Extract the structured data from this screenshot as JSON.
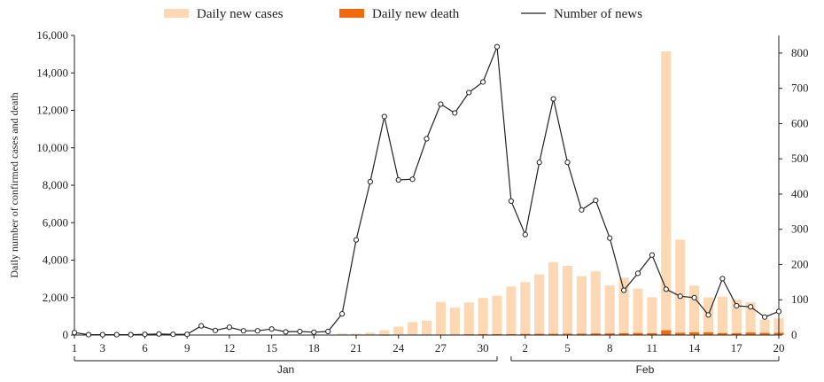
{
  "chart_data": {
    "type": "bar+line",
    "title": "",
    "legend": {
      "placement": "top",
      "entries": [
        {
          "label": "Daily new cases",
          "color": "#fcd9b4",
          "kind": "bar"
        },
        {
          "label": "Daily new death",
          "color": "#f26a10",
          "kind": "bar"
        },
        {
          "label": "Number of news",
          "color": "#222222",
          "kind": "line-marker"
        }
      ]
    },
    "ylabel": "Daily number of confirmed cases and death",
    "ylim": [
      0,
      16000
    ],
    "y_ticks": [
      0,
      2000,
      4000,
      6000,
      8000,
      10000,
      12000,
      14000,
      16000
    ],
    "y_tick_labels": [
      "0",
      "2,000",
      "4,000",
      "6,000",
      "8,000",
      "10,000",
      "12,000",
      "14,000",
      "16,000"
    ],
    "y2lim": [
      0,
      850
    ],
    "y2_ticks": [
      0,
      100,
      200,
      300,
      400,
      500,
      600,
      700,
      800
    ],
    "y2_tick_labels": [
      "0",
      "100",
      "200",
      "300",
      "400",
      "500",
      "600",
      "700",
      "800"
    ],
    "categories": [
      "Jan 1",
      "Jan 2",
      "Jan 3",
      "Jan 4",
      "Jan 5",
      "Jan 6",
      "Jan 7",
      "Jan 8",
      "Jan 9",
      "Jan 10",
      "Jan 11",
      "Jan 12",
      "Jan 13",
      "Jan 14",
      "Jan 15",
      "Jan 16",
      "Jan 17",
      "Jan 18",
      "Jan 19",
      "Jan 20",
      "Jan 21",
      "Jan 22",
      "Jan 23",
      "Jan 24",
      "Jan 25",
      "Jan 26",
      "Jan 27",
      "Jan 28",
      "Jan 29",
      "Jan 30",
      "Jan 31",
      "Feb 1",
      "Feb 2",
      "Feb 3",
      "Feb 4",
      "Feb 5",
      "Feb 6",
      "Feb 7",
      "Feb 8",
      "Feb 9",
      "Feb 10",
      "Feb 11",
      "Feb 12",
      "Feb 13",
      "Feb 14",
      "Feb 15",
      "Feb 16",
      "Feb 17",
      "Feb 18",
      "Feb 19",
      "Feb 20"
    ],
    "x_tick_labels": [
      {
        "index": 0,
        "label": "1"
      },
      {
        "index": 2,
        "label": "3"
      },
      {
        "index": 5,
        "label": "6"
      },
      {
        "index": 8,
        "label": "9"
      },
      {
        "index": 11,
        "label": "12"
      },
      {
        "index": 14,
        "label": "15"
      },
      {
        "index": 17,
        "label": "18"
      },
      {
        "index": 20,
        "label": "21"
      },
      {
        "index": 23,
        "label": "24"
      },
      {
        "index": 26,
        "label": "27"
      },
      {
        "index": 29,
        "label": "30"
      },
      {
        "index": 32,
        "label": "2"
      },
      {
        "index": 35,
        "label": "5"
      },
      {
        "index": 38,
        "label": "8"
      },
      {
        "index": 41,
        "label": "11"
      },
      {
        "index": 44,
        "label": "14"
      },
      {
        "index": 47,
        "label": "17"
      },
      {
        "index": 50,
        "label": "20"
      }
    ],
    "month_groups": [
      {
        "label": "Jan",
        "start_index": 0,
        "end_index": 30
      },
      {
        "label": "Feb",
        "start_index": 31,
        "end_index": 50
      }
    ],
    "series": [
      {
        "name": "Daily new cases",
        "axis": "left",
        "kind": "bar",
        "color": "#fcd9b4",
        "values": [
          0,
          0,
          0,
          0,
          0,
          0,
          0,
          0,
          0,
          0,
          0,
          0,
          0,
          0,
          0,
          0,
          0,
          0,
          0,
          80,
          80,
          130,
          260,
          450,
          690,
          770,
          1770,
          1460,
          1740,
          1980,
          2100,
          2590,
          2830,
          3240,
          3890,
          3690,
          3150,
          3400,
          2650,
          3060,
          2480,
          2020,
          15150,
          5090,
          2640,
          2010,
          2050,
          1890,
          1750,
          820,
          890
        ]
      },
      {
        "name": "Daily new death",
        "axis": "left",
        "kind": "bar",
        "color": "#f26a10",
        "values": [
          0,
          0,
          0,
          0,
          0,
          0,
          0,
          0,
          0,
          0,
          0,
          0,
          0,
          0,
          0,
          0,
          0,
          0,
          0,
          0,
          0,
          0,
          8,
          16,
          15,
          24,
          26,
          26,
          38,
          43,
          46,
          45,
          57,
          64,
          65,
          73,
          73,
          86,
          89,
          97,
          108,
          97,
          254,
          121,
          143,
          142,
          105,
          98,
          136,
          114,
          118
        ]
      },
      {
        "name": "Number of news",
        "axis": "right",
        "kind": "line",
        "color": "#222222",
        "values": [
          7,
          1,
          1,
          1,
          1,
          2,
          3,
          2,
          2,
          26,
          13,
          22,
          12,
          12,
          17,
          9,
          10,
          8,
          10,
          60,
          270,
          435,
          620,
          440,
          442,
          557,
          655,
          630,
          688,
          718,
          818,
          380,
          285,
          490,
          670,
          490,
          355,
          382,
          275,
          127,
          175,
          227,
          130,
          110,
          106,
          57,
          160,
          83,
          80,
          51,
          67
        ]
      }
    ]
  }
}
